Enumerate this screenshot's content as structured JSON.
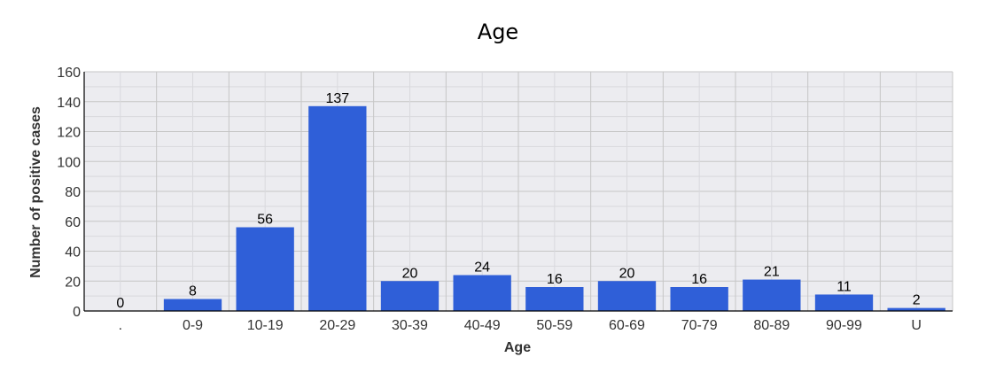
{
  "chart_data": {
    "type": "bar",
    "title": "Age",
    "xlabel": "Age",
    "ylabel": "Number of positive cases",
    "categories": [
      ".",
      "0-9",
      "10-19",
      "20-29",
      "30-39",
      "40-49",
      "50-59",
      "60-69",
      "70-79",
      "80-89",
      "90-99",
      "U"
    ],
    "values": [
      0,
      8,
      56,
      137,
      20,
      24,
      16,
      20,
      16,
      21,
      11,
      2
    ],
    "data_labels": [
      "0",
      "8",
      "56",
      "137",
      "20",
      "24",
      "16",
      "20",
      "16",
      "21",
      "11",
      "2"
    ],
    "ylim": [
      0,
      160
    ],
    "yticks": [
      0,
      20,
      40,
      60,
      80,
      100,
      120,
      140,
      160
    ],
    "ytick_labels": [
      "0",
      "20",
      "40",
      "60",
      "80",
      "100",
      "120",
      "140",
      "160"
    ],
    "grid": true,
    "legend": "none",
    "colors": {
      "bar": "#2f5fd8",
      "plot_background": "#ececf0",
      "grid_major": "#c6c6c6",
      "grid_minor": "#d9d9dd",
      "axis": "#000000",
      "text": "#333333"
    }
  }
}
